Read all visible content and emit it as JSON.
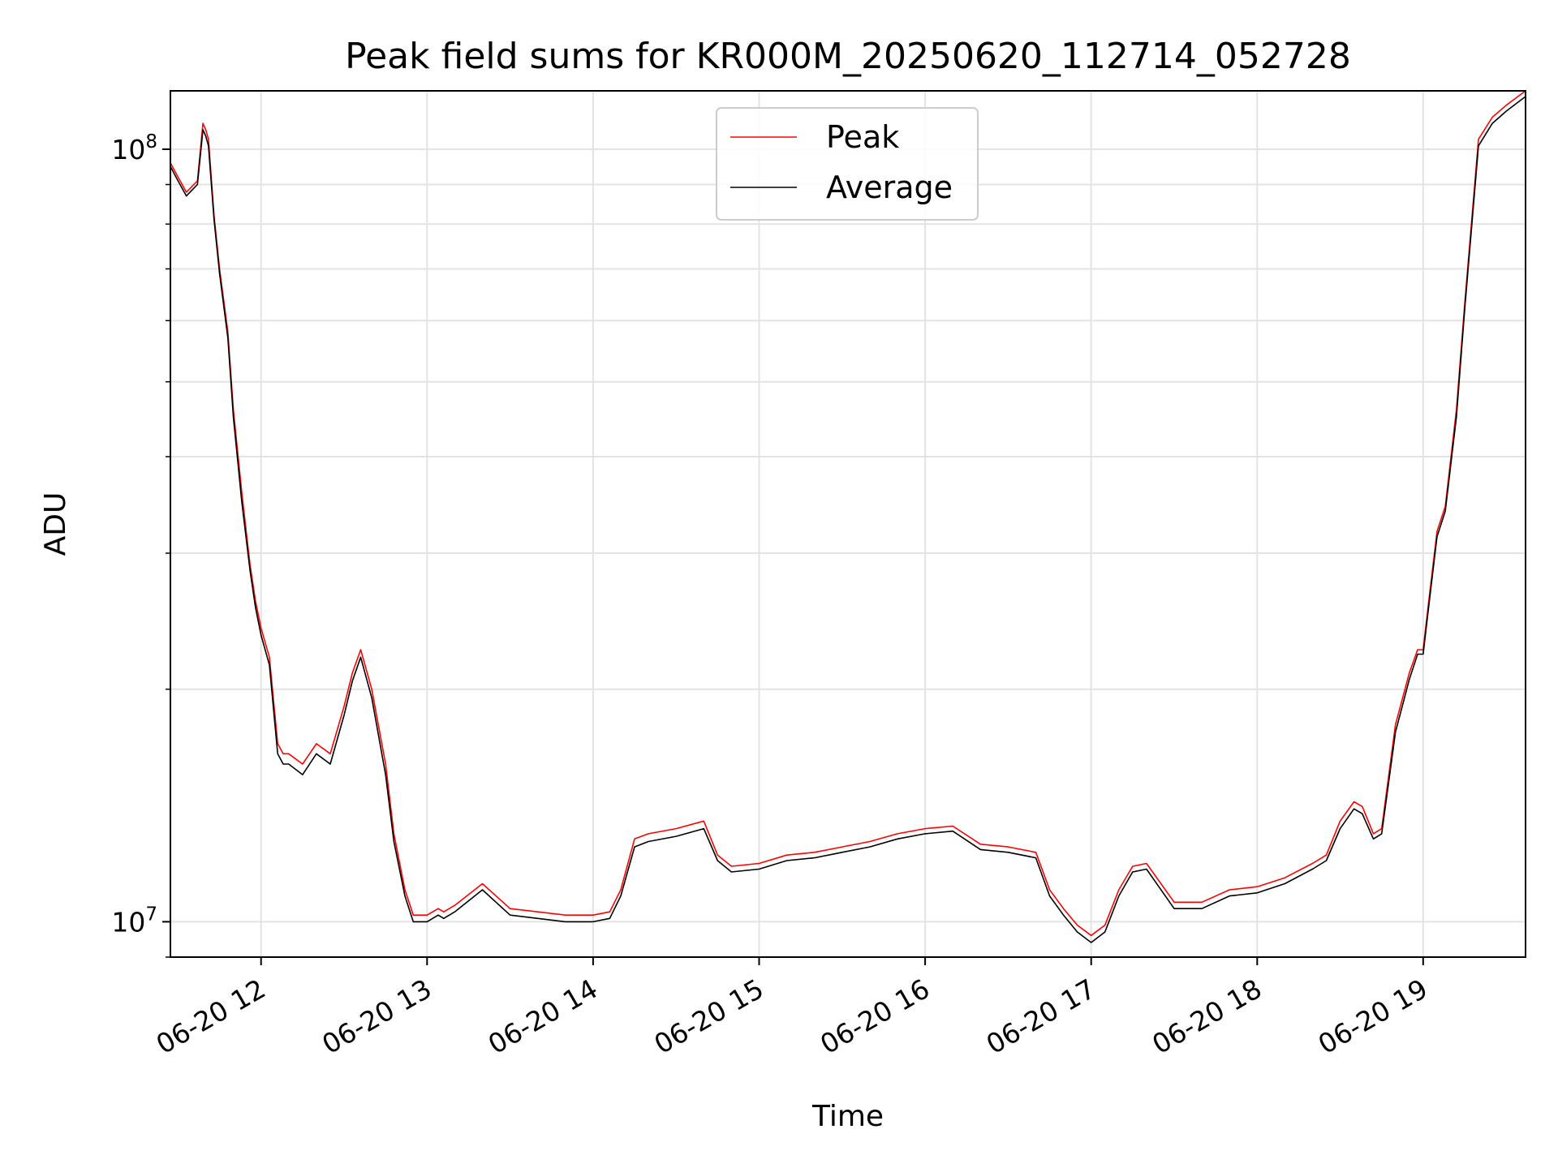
{
  "chart_data": {
    "type": "line",
    "title": "Peak field sums for KR000M_20250620_112714_052728",
    "xlabel": "Time",
    "ylabel": "ADU",
    "x_type": "datetime",
    "x_domain": [
      "2025-06-20T11:27:14",
      "2025-06-20T19:37:00"
    ],
    "xlim": [
      "2025-06-20T11:27:14",
      "2025-06-20T19:37:00"
    ],
    "ylim": [
      9000000,
      119000000
    ],
    "yscale": "log",
    "grid": true,
    "legend_position": "top-center",
    "x_ticks": [
      {
        "value": "2025-06-20T12:00:00",
        "label": "06-20 12"
      },
      {
        "value": "2025-06-20T13:00:00",
        "label": "06-20 13"
      },
      {
        "value": "2025-06-20T14:00:00",
        "label": "06-20 14"
      },
      {
        "value": "2025-06-20T15:00:00",
        "label": "06-20 15"
      },
      {
        "value": "2025-06-20T16:00:00",
        "label": "06-20 16"
      },
      {
        "value": "2025-06-20T17:00:00",
        "label": "06-20 17"
      },
      {
        "value": "2025-06-20T18:00:00",
        "label": "06-20 18"
      },
      {
        "value": "2025-06-20T19:00:00",
        "label": "06-20 19"
      }
    ],
    "y_ticks": [
      {
        "value": 10000000,
        "base": "10",
        "exp": "7"
      },
      {
        "value": 100000000,
        "base": "10",
        "exp": "8"
      }
    ],
    "series": [
      {
        "name": "Peak",
        "color": "#ff0000",
        "x": [
          "2025-06-20T11:27:14",
          "2025-06-20T11:30:00",
          "2025-06-20T11:33:00",
          "2025-06-20T11:37:00",
          "2025-06-20T11:39:00",
          "2025-06-20T11:40:00",
          "2025-06-20T11:41:00",
          "2025-06-20T11:43:00",
          "2025-06-20T11:45:00",
          "2025-06-20T11:48:00",
          "2025-06-20T11:50:00",
          "2025-06-20T11:53:00",
          "2025-06-20T11:56:00",
          "2025-06-20T11:58:00",
          "2025-06-20T12:00:00",
          "2025-06-20T12:03:00",
          "2025-06-20T12:06:00",
          "2025-06-20T12:08:00",
          "2025-06-20T12:10:00",
          "2025-06-20T12:15:00",
          "2025-06-20T12:20:00",
          "2025-06-20T12:25:00",
          "2025-06-20T12:30:00",
          "2025-06-20T12:33:00",
          "2025-06-20T12:36:00",
          "2025-06-20T12:40:00",
          "2025-06-20T12:45:00",
          "2025-06-20T12:48:00",
          "2025-06-20T12:52:00",
          "2025-06-20T12:55:00",
          "2025-06-20T13:00:00",
          "2025-06-20T13:04:00",
          "2025-06-20T13:06:00",
          "2025-06-20T13:10:00",
          "2025-06-20T13:20:00",
          "2025-06-20T13:30:00",
          "2025-06-20T13:40:00",
          "2025-06-20T13:50:00",
          "2025-06-20T14:00:00",
          "2025-06-20T14:06:00",
          "2025-06-20T14:10:00",
          "2025-06-20T14:15:00",
          "2025-06-20T14:20:00",
          "2025-06-20T14:30:00",
          "2025-06-20T14:40:00",
          "2025-06-20T14:45:00",
          "2025-06-20T14:50:00",
          "2025-06-20T15:00:00",
          "2025-06-20T15:10:00",
          "2025-06-20T15:20:00",
          "2025-06-20T15:30:00",
          "2025-06-20T15:40:00",
          "2025-06-20T15:50:00",
          "2025-06-20T16:00:00",
          "2025-06-20T16:10:00",
          "2025-06-20T16:20:00",
          "2025-06-20T16:30:00",
          "2025-06-20T16:40:00",
          "2025-06-20T16:45:00",
          "2025-06-20T16:50:00",
          "2025-06-20T16:55:00",
          "2025-06-20T17:00:00",
          "2025-06-20T17:05:00",
          "2025-06-20T17:10:00",
          "2025-06-20T17:15:00",
          "2025-06-20T17:20:00",
          "2025-06-20T17:30:00",
          "2025-06-20T17:40:00",
          "2025-06-20T17:50:00",
          "2025-06-20T18:00:00",
          "2025-06-20T18:10:00",
          "2025-06-20T18:20:00",
          "2025-06-20T18:25:00",
          "2025-06-20T18:30:00",
          "2025-06-20T18:35:00",
          "2025-06-20T18:38:00",
          "2025-06-20T18:42:00",
          "2025-06-20T18:45:00",
          "2025-06-20T18:50:00",
          "2025-06-20T18:55:00",
          "2025-06-20T18:58:00",
          "2025-06-20T19:00:00",
          "2025-06-20T19:02:00",
          "2025-06-20T19:05:00",
          "2025-06-20T19:08:00",
          "2025-06-20T19:12:00",
          "2025-06-20T19:15:00",
          "2025-06-20T19:20:00",
          "2025-06-20T19:25:00",
          "2025-06-20T19:30:00",
          "2025-06-20T19:37:00"
        ],
        "values": [
          96000000,
          92000000,
          88000000,
          91000000,
          108000000,
          106000000,
          103000000,
          82000000,
          70000000,
          58000000,
          46000000,
          36000000,
          29000000,
          26000000,
          24000000,
          22000000,
          17000000,
          16500000,
          16500000,
          16000000,
          17000000,
          16500000,
          19000000,
          21000000,
          22500000,
          20000000,
          16000000,
          13000000,
          11000000,
          10200000,
          10200000,
          10400000,
          10300000,
          10500000,
          11200000,
          10400000,
          10300000,
          10200000,
          10200000,
          10300000,
          11000000,
          12800000,
          13000000,
          13200000,
          13500000,
          12200000,
          11800000,
          11900000,
          12200000,
          12300000,
          12500000,
          12700000,
          13000000,
          13200000,
          13300000,
          12600000,
          12500000,
          12300000,
          11000000,
          10400000,
          9900000,
          9600000,
          9900000,
          11000000,
          11800000,
          11900000,
          10600000,
          10600000,
          11000000,
          11100000,
          11400000,
          11900000,
          12200000,
          13500000,
          14300000,
          14100000,
          13000000,
          13200000,
          18000000,
          21000000,
          22500000,
          22500000,
          26000000,
          32000000,
          34500000,
          46000000,
          63000000,
          103000000,
          110000000,
          114000000,
          119000000
        ]
      },
      {
        "name": "Average",
        "color": "#000000",
        "x": [
          "2025-06-20T11:27:14",
          "2025-06-20T11:30:00",
          "2025-06-20T11:33:00",
          "2025-06-20T11:37:00",
          "2025-06-20T11:39:00",
          "2025-06-20T11:40:00",
          "2025-06-20T11:41:00",
          "2025-06-20T11:43:00",
          "2025-06-20T11:45:00",
          "2025-06-20T11:48:00",
          "2025-06-20T11:50:00",
          "2025-06-20T11:53:00",
          "2025-06-20T11:56:00",
          "2025-06-20T11:58:00",
          "2025-06-20T12:00:00",
          "2025-06-20T12:03:00",
          "2025-06-20T12:06:00",
          "2025-06-20T12:08:00",
          "2025-06-20T12:10:00",
          "2025-06-20T12:15:00",
          "2025-06-20T12:20:00",
          "2025-06-20T12:25:00",
          "2025-06-20T12:30:00",
          "2025-06-20T12:33:00",
          "2025-06-20T12:36:00",
          "2025-06-20T12:40:00",
          "2025-06-20T12:45:00",
          "2025-06-20T12:48:00",
          "2025-06-20T12:52:00",
          "2025-06-20T12:55:00",
          "2025-06-20T13:00:00",
          "2025-06-20T13:04:00",
          "2025-06-20T13:06:00",
          "2025-06-20T13:10:00",
          "2025-06-20T13:20:00",
          "2025-06-20T13:30:00",
          "2025-06-20T13:40:00",
          "2025-06-20T13:50:00",
          "2025-06-20T14:00:00",
          "2025-06-20T14:06:00",
          "2025-06-20T14:10:00",
          "2025-06-20T14:15:00",
          "2025-06-20T14:20:00",
          "2025-06-20T14:30:00",
          "2025-06-20T14:40:00",
          "2025-06-20T14:45:00",
          "2025-06-20T14:50:00",
          "2025-06-20T15:00:00",
          "2025-06-20T15:10:00",
          "2025-06-20T15:20:00",
          "2025-06-20T15:30:00",
          "2025-06-20T15:40:00",
          "2025-06-20T15:50:00",
          "2025-06-20T16:00:00",
          "2025-06-20T16:10:00",
          "2025-06-20T16:20:00",
          "2025-06-20T16:30:00",
          "2025-06-20T16:40:00",
          "2025-06-20T16:45:00",
          "2025-06-20T16:50:00",
          "2025-06-20T16:55:00",
          "2025-06-20T17:00:00",
          "2025-06-20T17:05:00",
          "2025-06-20T17:10:00",
          "2025-06-20T17:15:00",
          "2025-06-20T17:20:00",
          "2025-06-20T17:30:00",
          "2025-06-20T17:40:00",
          "2025-06-20T17:50:00",
          "2025-06-20T18:00:00",
          "2025-06-20T18:10:00",
          "2025-06-20T18:20:00",
          "2025-06-20T18:25:00",
          "2025-06-20T18:30:00",
          "2025-06-20T18:35:00",
          "2025-06-20T18:38:00",
          "2025-06-20T18:42:00",
          "2025-06-20T18:45:00",
          "2025-06-20T18:50:00",
          "2025-06-20T18:55:00",
          "2025-06-20T18:58:00",
          "2025-06-20T19:00:00",
          "2025-06-20T19:02:00",
          "2025-06-20T19:05:00",
          "2025-06-20T19:08:00",
          "2025-06-20T19:12:00",
          "2025-06-20T19:15:00",
          "2025-06-20T19:20:00",
          "2025-06-20T19:25:00",
          "2025-06-20T19:30:00",
          "2025-06-20T19:37:00"
        ],
        "values": [
          95000000,
          91000000,
          87000000,
          90000000,
          106000000,
          104000000,
          101000000,
          81000000,
          69000000,
          57000000,
          45000000,
          35000000,
          28500000,
          25500000,
          23500000,
          21500000,
          16500000,
          16000000,
          16000000,
          15500000,
          16500000,
          16000000,
          18500000,
          20500000,
          22000000,
          19500000,
          15500000,
          12700000,
          10800000,
          10000000,
          10000000,
          10200000,
          10100000,
          10300000,
          11000000,
          10200000,
          10100000,
          10000000,
          10000000,
          10100000,
          10800000,
          12500000,
          12700000,
          12900000,
          13200000,
          12000000,
          11600000,
          11700000,
          12000000,
          12100000,
          12300000,
          12500000,
          12800000,
          13000000,
          13100000,
          12400000,
          12300000,
          12100000,
          10800000,
          10200000,
          9700000,
          9400000,
          9700000,
          10800000,
          11600000,
          11700000,
          10400000,
          10400000,
          10800000,
          10900000,
          11200000,
          11700000,
          12000000,
          13200000,
          14000000,
          13800000,
          12800000,
          13000000,
          17600000,
          20600000,
          22200000,
          22200000,
          25600000,
          31500000,
          34000000,
          45000000,
          62000000,
          101000000,
          108000000,
          112000000,
          117000000
        ]
      }
    ]
  }
}
